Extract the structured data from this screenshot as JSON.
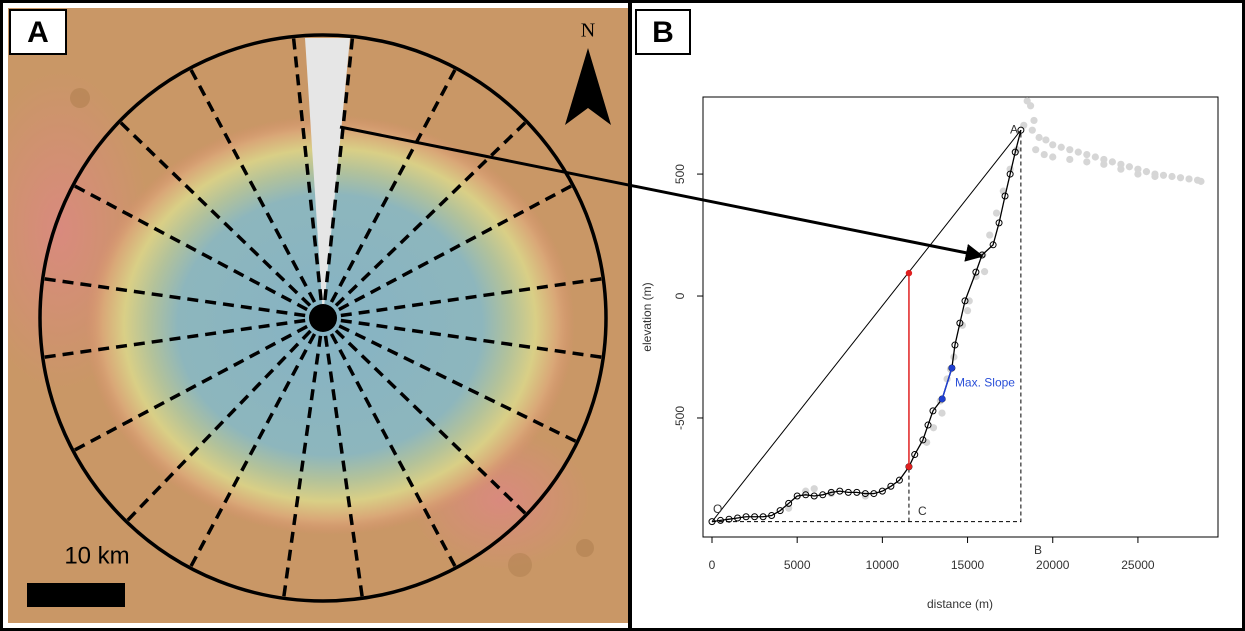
{
  "panels": [
    {
      "label": "A"
    },
    {
      "label": "B"
    }
  ],
  "map": {
    "north_label": "N",
    "scale_label": "10 km"
  },
  "chart_data": {
    "type": "line",
    "xlabel": "distance (m)",
    "ylabel": "elevation (m)",
    "xlim": [
      -528,
      29700
    ],
    "ylim": [
      -988,
      816
    ],
    "xticks": [
      0,
      5000,
      10000,
      15000,
      20000,
      25000
    ],
    "yticks": [
      -500,
      0,
      500
    ],
    "series": [
      {
        "style": "points",
        "color": "#d6d6d6",
        "x": [
          4500,
          5500,
          6000,
          7000,
          9000,
          12600,
          13000,
          13400,
          13500,
          13800,
          14000,
          14200,
          14700,
          15000,
          15100,
          15500,
          15900,
          16000,
          16300,
          16700,
          17100,
          17500,
          17900,
          18300,
          18500,
          18700,
          18800,
          18900,
          19000,
          19200,
          19500,
          19600,
          20000,
          20000,
          20500,
          21000,
          21000,
          21500,
          22000,
          22000,
          22500,
          23000,
          23000,
          23500,
          24000,
          24000,
          24500,
          25000,
          25000,
          25500,
          26000,
          26000,
          26500,
          27000,
          27500,
          28000,
          28500,
          28700
        ],
        "values": [
          -870,
          -800,
          -790,
          -810,
          -820,
          -600,
          -540,
          -430,
          -480,
          -340,
          -300,
          -250,
          -120,
          -60,
          -20,
          80,
          170,
          100,
          250,
          340,
          430,
          520,
          600,
          700,
          800,
          780,
          680,
          720,
          600,
          650,
          580,
          640,
          620,
          570,
          610,
          600,
          560,
          590,
          580,
          550,
          570,
          560,
          540,
          550,
          540,
          520,
          530,
          520,
          500,
          510,
          500,
          490,
          495,
          490,
          485,
          480,
          475,
          470
        ]
      },
      {
        "style": "line",
        "color": "#000000",
        "x": [
          0,
          18130
        ],
        "values": [
          -925,
          680
        ]
      },
      {
        "style": "dashed",
        "color": "#000000",
        "x": [
          0,
          18130,
          18130
        ],
        "values": [
          -925,
          -925,
          680
        ]
      },
      {
        "style": "dashed",
        "color": "#000000",
        "x": [
          11560,
          11560
        ],
        "values": [
          -925,
          -700
        ]
      },
      {
        "style": "line-circles",
        "color": "#000000",
        "x": [
          0,
          500,
          1000,
          1500,
          2000,
          2500,
          3000,
          3500,
          4000,
          4500,
          5000,
          5500,
          6000,
          6500,
          7000,
          7500,
          8000,
          8500,
          9000,
          9500,
          10000,
          10500,
          11000,
          11560,
          11900,
          12380,
          12680,
          12970,
          13510,
          14080,
          14260,
          14550,
          14850,
          15490,
          15850,
          16500,
          16850,
          17200,
          17500,
          17800,
          18130
        ],
        "values": [
          -925,
          -920,
          -915,
          -910,
          -905,
          -905,
          -905,
          -900,
          -880,
          -850,
          -820,
          -815,
          -820,
          -815,
          -805,
          -800,
          -805,
          -805,
          -810,
          -810,
          -800,
          -780,
          -755,
          -700,
          -650,
          -590,
          -529,
          -471,
          -422,
          -295,
          -201,
          -111,
          -20,
          98,
          168,
          210,
          300,
          410,
          500,
          590,
          680
        ]
      },
      {
        "style": "line-dots",
        "color": "#e02020",
        "x": [
          11560,
          11560
        ],
        "values": [
          -700,
          94
        ]
      },
      {
        "style": "line-dots",
        "color": "#1f3fd0",
        "x": [
          13510,
          14080
        ],
        "values": [
          -422,
          -295
        ]
      }
    ],
    "annotations": [
      {
        "text": "O",
        "x": 59,
        "y": -877,
        "color": "#333333"
      },
      {
        "text": "A",
        "x": 17490,
        "y": 680,
        "color": "#333333"
      },
      {
        "text": "B",
        "x": 18900,
        "y": -1045,
        "color": "#333333"
      },
      {
        "text": "C",
        "x": 12090,
        "y": -885,
        "color": "#333333"
      },
      {
        "text": "Max. Slope",
        "x": 14260,
        "y": -357,
        "color": "#2a4fd8"
      }
    ]
  }
}
